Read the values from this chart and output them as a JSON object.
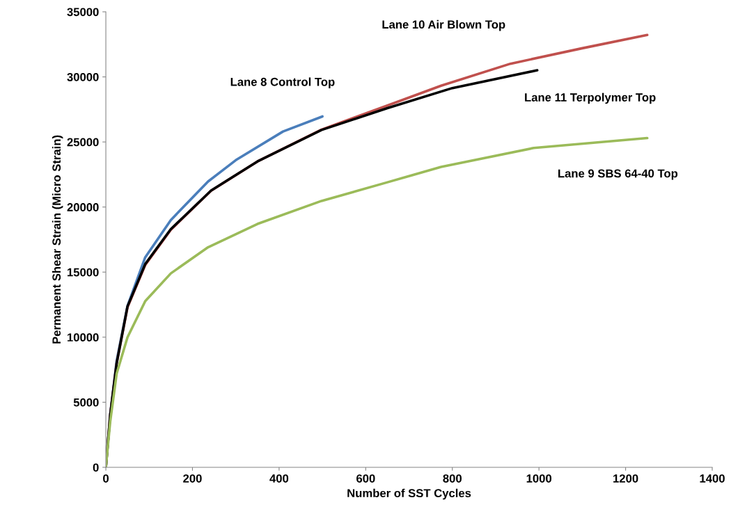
{
  "chart_data": {
    "type": "line",
    "xlabel": "Number of SST Cycles",
    "ylabel": "Permanent Shear Strain (Micro Strain)",
    "xlim": [
      0,
      1400
    ],
    "xticks": [
      0,
      200,
      400,
      600,
      800,
      1000,
      1200,
      1400
    ],
    "ylim": [
      0,
      35000
    ],
    "yticks": [
      0,
      5000,
      10000,
      15000,
      20000,
      25000,
      30000,
      35000
    ],
    "grid": false,
    "legend": false,
    "marker": "none",
    "line_style": "solid",
    "series": [
      {
        "name": "Lane 8 Control Top",
        "color": "#4a7ebb",
        "x": [
          0,
          10,
          25,
          50,
          91,
          150,
          236,
          300,
          409,
          500
        ],
        "values": [
          0,
          4000,
          8200,
          12400,
          16140,
          19000,
          21960,
          23600,
          25800,
          26960
        ]
      },
      {
        "name": "Lane 10 Air Blown Top",
        "color": "#c0504d",
        "x": [
          0,
          10,
          25,
          50,
          91,
          150,
          243,
          350,
          498,
          650,
          774,
          934,
          1100,
          1250
        ],
        "values": [
          0,
          4000,
          8000,
          12300,
          15550,
          18250,
          21250,
          23500,
          25950,
          27800,
          29320,
          31010,
          32200,
          33220
        ]
      },
      {
        "name": "Lane 11 Terpolymer Top",
        "color": "#000000",
        "x": [
          0,
          10,
          25,
          50,
          91,
          150,
          243,
          350,
          498,
          650,
          800,
          996
        ],
        "values": [
          0,
          4000,
          8000,
          12360,
          15620,
          18300,
          21270,
          23500,
          25920,
          27600,
          29140,
          30510
        ]
      },
      {
        "name": "Lane 9 SBS 64-40 Top",
        "color": "#9bbb59",
        "x": [
          0,
          10,
          25,
          50,
          91,
          150,
          236,
          350,
          498,
          650,
          774,
          988,
          1250
        ],
        "values": [
          0,
          3500,
          7210,
          9990,
          12770,
          14900,
          16910,
          18700,
          20470,
          21900,
          23080,
          24540,
          25300
        ]
      }
    ]
  }
}
